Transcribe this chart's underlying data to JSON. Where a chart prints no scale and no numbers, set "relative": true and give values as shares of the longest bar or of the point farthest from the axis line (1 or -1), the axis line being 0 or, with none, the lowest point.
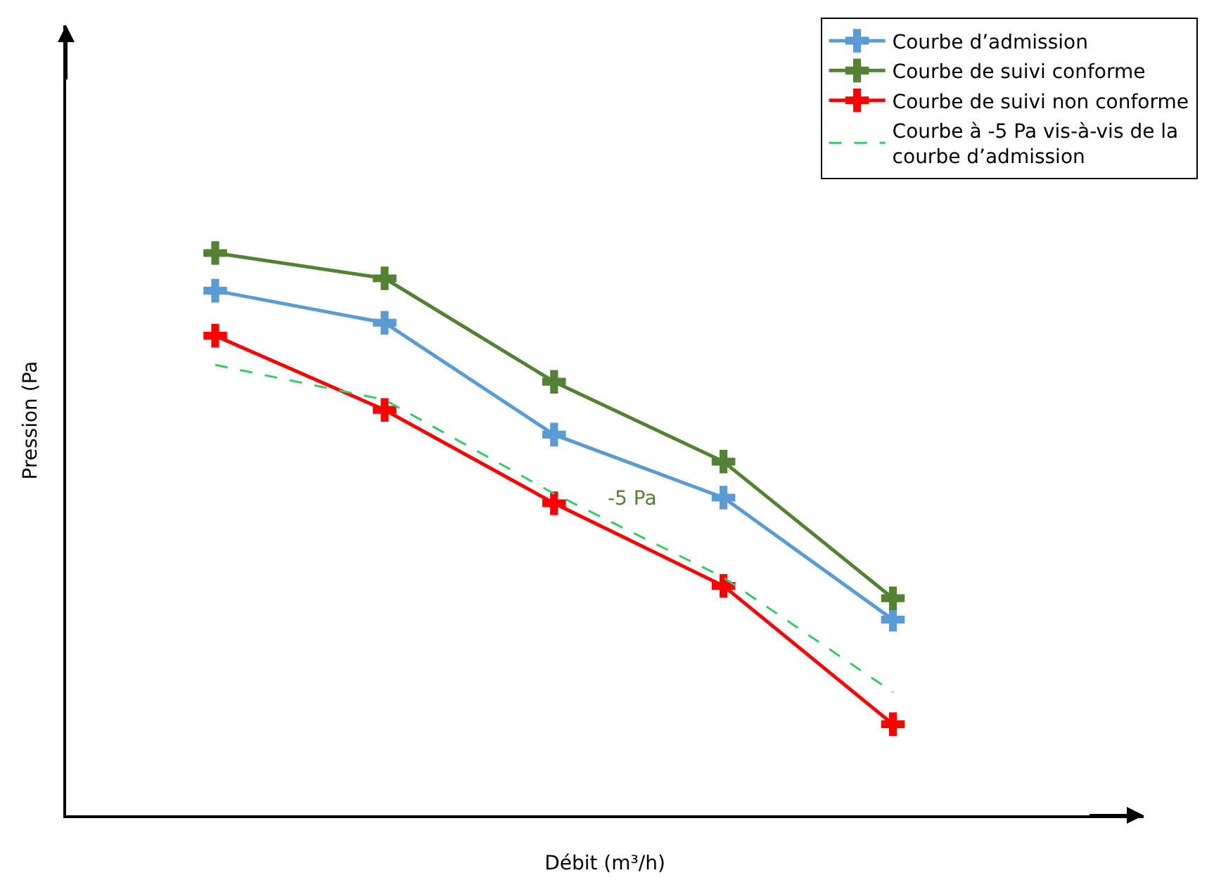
{
  "chart_data": {
    "type": "line",
    "relative": true,
    "xlabel": "Débit (m³/h)",
    "ylabel": "Pression (Pa",
    "categories": [
      null,
      null,
      null,
      null,
      null
    ],
    "legend": "top right",
    "marker": "cross",
    "series": [
      {
        "name": "Courbe d’admission",
        "color": "#5b9bd5",
        "values": [
          0.933,
          0.876,
          0.677,
          0.565,
          0.348
        ]
      },
      {
        "name": "Courbe de suivi conforme",
        "color": "#548235",
        "values": [
          1.0,
          0.955,
          0.771,
          0.629,
          0.386
        ]
      },
      {
        "name": "Courbe de suivi non conforme",
        "color": "#ff0000",
        "values": [
          0.853,
          0.721,
          0.555,
          0.408,
          0.162
        ]
      },
      {
        "name": "Courbe à -5 Pa vis-à-vis de la courbe d’admission",
        "color": "#33cc66",
        "line_style": "dashed",
        "marker": "none",
        "values": [
          0.801,
          0.739,
          0.572,
          0.423,
          0.219
        ]
      }
    ],
    "annotations": [
      "-5 Pa"
    ]
  }
}
